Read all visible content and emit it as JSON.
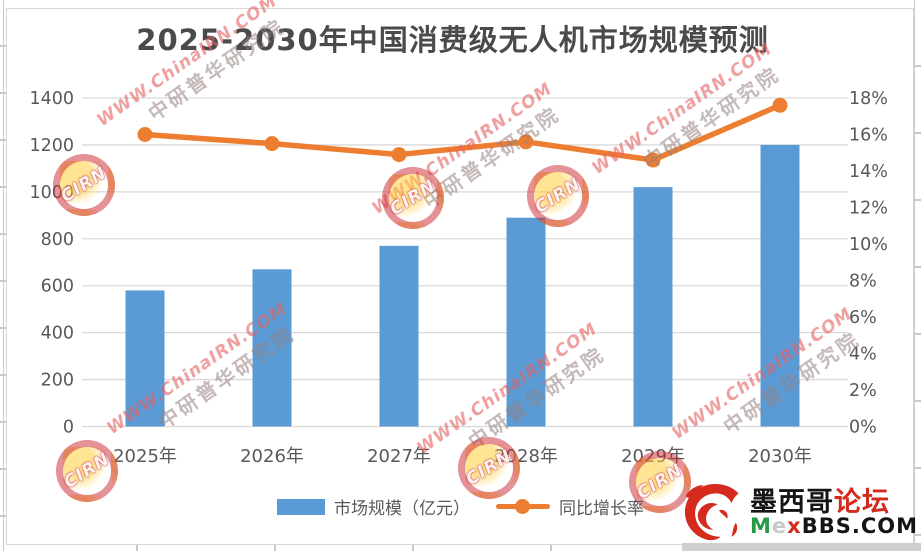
{
  "title": "2025-2030年中国消费级无人机市场规模预测",
  "chart_data": {
    "type": "bar+line combo",
    "title": "2025-2030年中国消费级无人机市场规模预测",
    "categories": [
      "2025年",
      "2026年",
      "2027年",
      "2028年",
      "2029年",
      "2030年"
    ],
    "series": [
      {
        "name": "市场规模（亿元）",
        "type": "bar",
        "axis": "left",
        "color": "#5B9BD5",
        "values": [
          580,
          670,
          770,
          890,
          1020,
          1200
        ]
      },
      {
        "name": "同比增长率",
        "type": "line",
        "axis": "right",
        "color": "#ED7D31",
        "values_percent": [
          16.0,
          15.5,
          14.9,
          15.6,
          14.6,
          17.6
        ]
      }
    ],
    "left_axis": {
      "min": 0,
      "max": 1400,
      "step": 200,
      "tick_labels": [
        "0",
        "200",
        "400",
        "600",
        "800",
        "1000",
        "1200",
        "1400"
      ]
    },
    "right_axis": {
      "min": 0,
      "max": 18,
      "step": 2,
      "tick_labels": [
        "0%",
        "2%",
        "4%",
        "6%",
        "8%",
        "10%",
        "12%",
        "14%",
        "16%",
        "18%"
      ]
    },
    "grid": true,
    "legend_position": "bottom"
  },
  "legend": {
    "items": [
      {
        "label": "市场规模（亿元）",
        "marker": "bar-swatch",
        "color": "#5B9BD5"
      },
      {
        "label": "同比增长率",
        "marker": "line-dot-swatch",
        "color": "#ED7D31"
      }
    ]
  },
  "watermark": {
    "line1": "WWW.ChinaIRN.COM",
    "line2": "中研普华研究院",
    "stamp_text": "CIRN"
  },
  "logo": {
    "name_black": "墨西哥",
    "name_red": "论坛",
    "domain_parts": [
      {
        "text": "M",
        "color": "#249a47"
      },
      {
        "text": "e",
        "color": "#c9c9c9"
      },
      {
        "text": "x",
        "color": "#d42b1e"
      },
      {
        "text": "BBS",
        "color": "#151515"
      },
      {
        "text": ".COM",
        "color": "#151515"
      }
    ]
  },
  "colors": {
    "bar": "#5B9BD5",
    "line": "#ED7D31",
    "axis_text": "#595959",
    "gridline": "#d9d9d9",
    "title_text": "#4a4a4a",
    "logo_red": "#d42b1e"
  }
}
